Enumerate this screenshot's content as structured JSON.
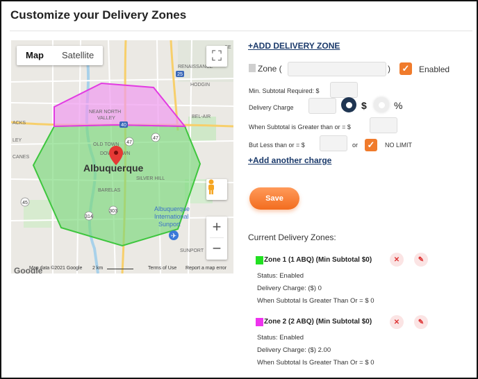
{
  "page": {
    "title": "Customize your Delivery Zones"
  },
  "map": {
    "type_buttons": [
      "Map",
      "Satellite"
    ],
    "city_label": "Albuquerque",
    "place_labels": [
      "RENAISSANCE",
      "HODGIN",
      "BEL-AIR",
      "NEAR NORTH VALLEY",
      "OLD TOWN",
      "DOWNTOWN",
      "SILVER HILL",
      "BARELAS",
      "Albuquerque International Sunport",
      "SUNPORT",
      "CANES",
      "ACKS",
      "LEY",
      "CE"
    ],
    "road_labels": [
      "25",
      "40",
      "47",
      "45",
      "314",
      "303",
      "47"
    ],
    "attribution": "Map data ©2021 Google",
    "scale": "2 km",
    "terms": "Terms of Use",
    "report": "Report a map error",
    "logo": "Google"
  },
  "form": {
    "add_zone_link": "+ADD DELIVERY ZONE",
    "zone_label": "Zone (",
    "zone_close_paren": ")",
    "zone_input_value": "",
    "enabled_label": "Enabled",
    "min_subtotal_label": "Min. Subtotal Required: $",
    "delivery_charge_label": "Delivery Charge",
    "dollar_label": "$",
    "percent_label": "%",
    "greater_than_label": "When Subtotal is Greater than or = $",
    "less_than_label": "But Less than or = $",
    "or_label": "or",
    "no_limit_label": "NO LIMIT",
    "add_charge_link": "+Add another charge",
    "save_label": "Save"
  },
  "zones_section": {
    "heading": "Current Delivery Zones:",
    "zones": [
      {
        "title": "Zone 1 (1 ABQ) (Min Subtotal $0)",
        "color": "#22e022",
        "status": "Status: Enabled",
        "charge": "Delivery Charge: ($) 0",
        "subtotal": "When Subtotal Is Greater Than Or = $ 0"
      },
      {
        "title": "Zone 2 (2 ABQ) (Min Subtotal $0)",
        "color": "#ee33ee",
        "status": "Status: Enabled",
        "charge": "Delivery Charge: ($) 2.00",
        "subtotal": "When Subtotal Is Greater Than Or = $ 0"
      }
    ]
  },
  "colors": {
    "accent": "#f07b2c",
    "link": "#1b3a6b",
    "zone1_fill": "#8fe38f",
    "zone2_fill": "#f0a6f0"
  }
}
